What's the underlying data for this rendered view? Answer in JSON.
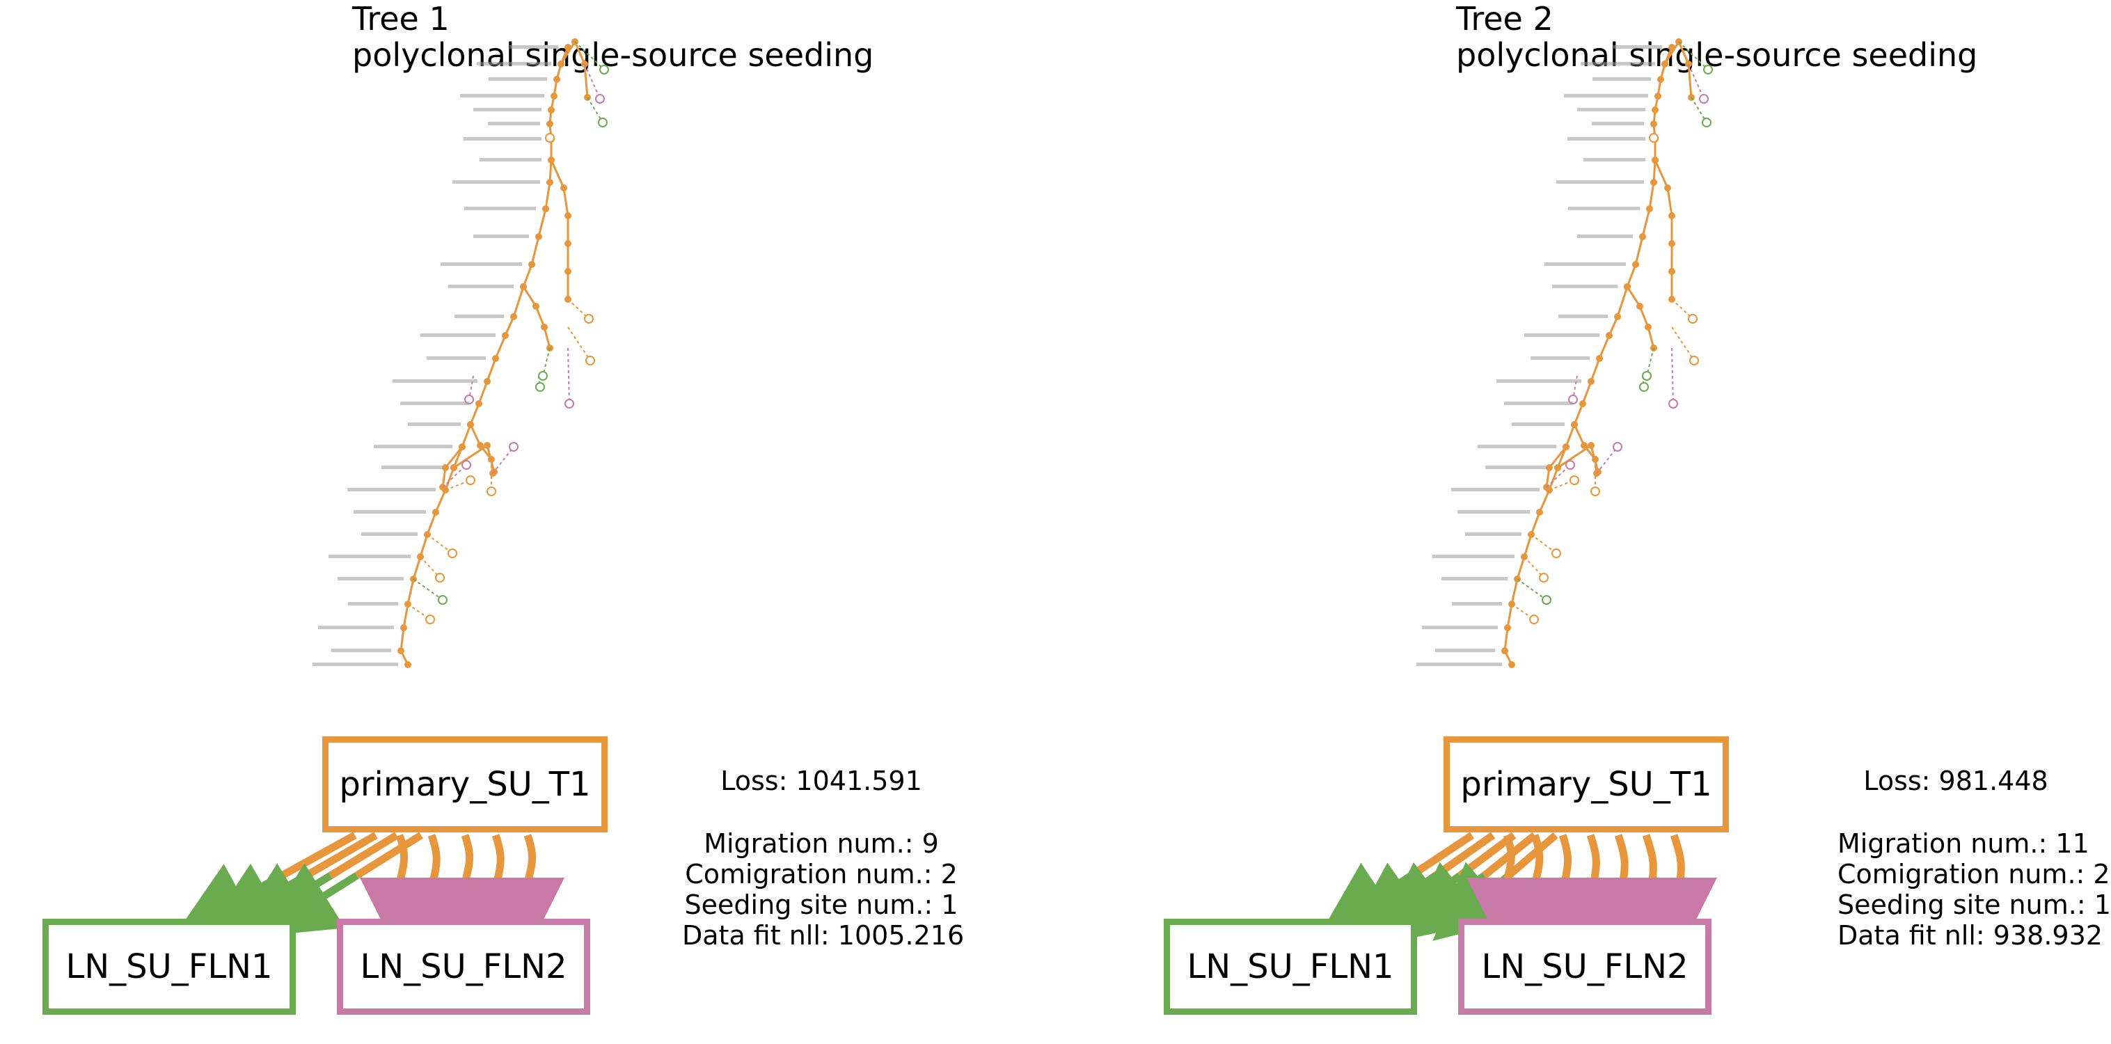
{
  "colors": {
    "primary": "#e8963b",
    "ln1": "#6aab50",
    "ln2": "#c77aa6"
  },
  "panels": [
    {
      "title": "Tree 1",
      "subtitle": "polyclonal single-source seeding",
      "graph": {
        "source": "primary_SU_T1",
        "targets": [
          "LN_SU_FLN1",
          "LN_SU_FLN2"
        ]
      },
      "loss_label": "Loss: 1041.591",
      "stats": {
        "migration": "Migration num.: 9",
        "comigration": "Comigration num.: 2",
        "seeding": "Seeding site num.: 1",
        "datafit": "Data fit nll: 1005.216"
      }
    },
    {
      "title": "Tree 2",
      "subtitle": "polyclonal single-source seeding",
      "graph": {
        "source": "primary_SU_T1",
        "targets": [
          "LN_SU_FLN1",
          "LN_SU_FLN2"
        ]
      },
      "loss_label": "Loss: 981.448",
      "stats": {
        "migration": "Migration num.: 11",
        "comigration": "Comigration num.: 2",
        "seeding": "Seeding site num.: 1",
        "datafit": "Data fit nll: 938.932"
      }
    }
  ]
}
